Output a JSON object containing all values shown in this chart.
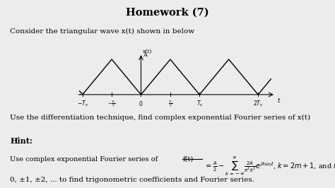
{
  "title": "Homework (7)",
  "line1": "Consider the triangular wave x(t) shown in below",
  "line2": "Use the differentiation technique, find complex exponential Fourier series of x(t)",
  "hint_label": "Hint:",
  "hint_line2": "0, ±1, ±2, ... to find trigonometric coefficients and Fourier series.",
  "bg_color": "#ececec",
  "text_color": "#000000",
  "wave_color": "#000000"
}
